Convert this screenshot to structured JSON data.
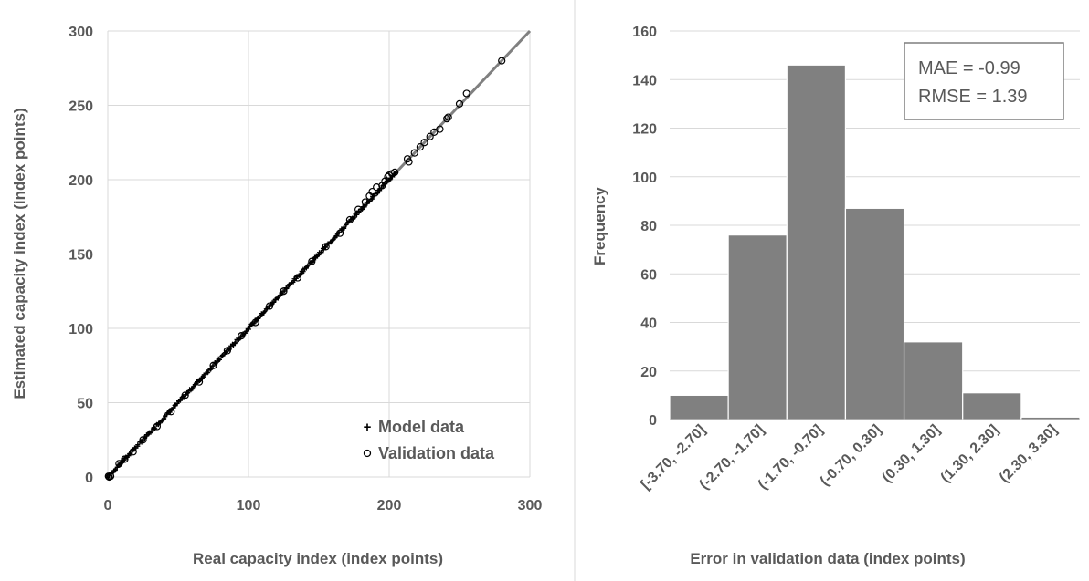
{
  "chart_data": [
    {
      "type": "scatter",
      "title": "",
      "xlabel": "Real capacity index (index points)",
      "ylabel": "Estimated capacity index (index points)",
      "xlim": [
        0,
        300
      ],
      "ylim": [
        0,
        300
      ],
      "xticks": [
        "0",
        "100",
        "200",
        "300"
      ],
      "yticks": [
        "0",
        "50",
        "100",
        "150",
        "200",
        "250",
        "300"
      ],
      "grid": true,
      "legend_position": "bottom-right",
      "reference_line": {
        "x": [
          0,
          300
        ],
        "y": [
          0,
          300
        ],
        "color": "#808080"
      },
      "series": [
        {
          "name": "Model data",
          "marker": "plus",
          "range": [
            0,
            205
          ]
        },
        {
          "name": "Validation data",
          "marker": "circle",
          "points": [
            [
              0.5,
              0.5
            ],
            [
              1,
              0
            ],
            [
              2,
              0.5
            ],
            [
              8,
              9
            ],
            [
              12,
              12
            ],
            [
              18,
              17
            ],
            [
              25,
              25
            ],
            [
              35,
              34
            ],
            [
              45,
              44
            ],
            [
              55,
              55
            ],
            [
              65,
              64
            ],
            [
              75,
              75
            ],
            [
              85,
              85
            ],
            [
              95,
              95
            ],
            [
              105,
              104
            ],
            [
              115,
              115
            ],
            [
              125,
              125
            ],
            [
              135,
              134
            ],
            [
              145,
              145
            ],
            [
              155,
              155
            ],
            [
              165,
              164
            ],
            [
              172,
              173
            ],
            [
              178,
              180
            ],
            [
              183,
              185
            ],
            [
              186,
              189
            ],
            [
              188,
              192
            ],
            [
              191,
              195
            ],
            [
              195,
              196
            ],
            [
              197,
              199
            ],
            [
              199,
              202
            ],
            [
              200,
              203
            ],
            [
              202,
              204
            ],
            [
              204,
              205
            ],
            [
              213,
              214
            ],
            [
              214,
              212
            ],
            [
              218,
              218
            ],
            [
              222,
              222
            ],
            [
              225,
              225
            ],
            [
              229,
              229
            ],
            [
              232,
              232
            ],
            [
              236,
              234
            ],
            [
              241,
              241
            ],
            [
              242,
              242
            ],
            [
              250,
              251
            ],
            [
              255,
              258
            ],
            [
              280,
              280
            ]
          ]
        }
      ]
    },
    {
      "type": "bar",
      "title": "",
      "xlabel": "Error in validation data (index points)",
      "ylabel": "Frequency",
      "ylim": [
        0,
        160
      ],
      "yticks": [
        "0",
        "20",
        "40",
        "60",
        "80",
        "100",
        "120",
        "140",
        "160"
      ],
      "grid": true,
      "bar_color": "#808080",
      "categories": [
        "[-3.70, -2.70]",
        "(-2.70, -1.70]",
        "(-1.70, -0.70]",
        "(-0.70, 0.30]",
        "(0.30, 1.30]",
        "(1.30, 2.30]",
        "(2.30, 3.30]"
      ],
      "values": [
        10,
        76,
        146,
        87,
        32,
        11,
        1
      ],
      "annotations": [
        "MAE = -0.99",
        "RMSE = 1.39"
      ]
    }
  ]
}
